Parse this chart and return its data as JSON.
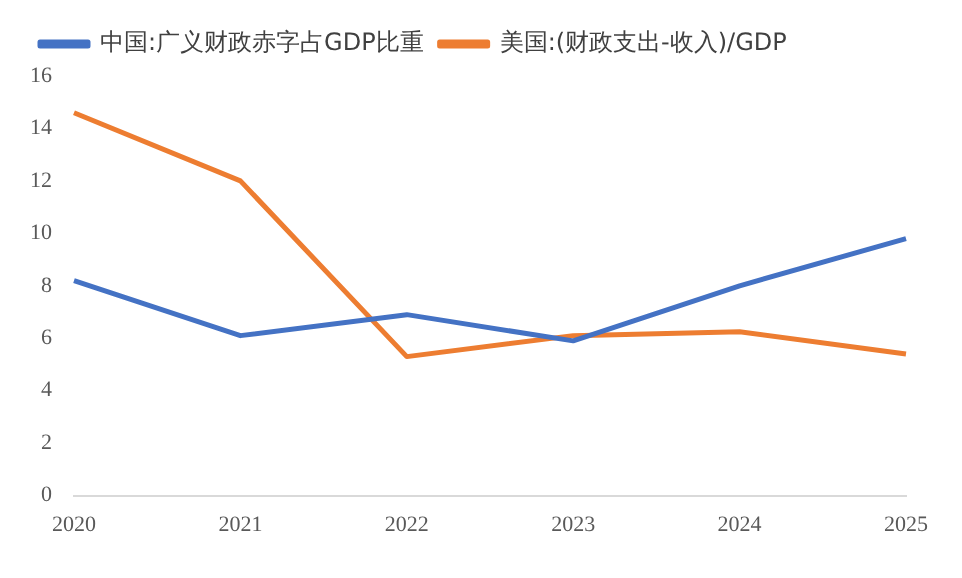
{
  "chart_data": {
    "type": "line",
    "categories": [
      "2020",
      "2021",
      "2022",
      "2023",
      "2024",
      "2025"
    ],
    "series": [
      {
        "name": "中国:广义财政赤字占GDP比重",
        "color": "#4472c4",
        "values": [
          8.2,
          6.1,
          6.9,
          5.9,
          8.0,
          9.8
        ]
      },
      {
        "name": "美国:(财政支出-收入)/GDP",
        "color": "#ed7d31",
        "values": [
          14.6,
          12.0,
          5.3,
          6.1,
          6.25,
          5.4
        ]
      }
    ],
    "ylim": [
      0,
      16
    ],
    "yticks": [
      0,
      2,
      4,
      6,
      8,
      10,
      12,
      14,
      16
    ],
    "grid": false,
    "legend": "top",
    "marker": "none",
    "line_style": "solid"
  }
}
